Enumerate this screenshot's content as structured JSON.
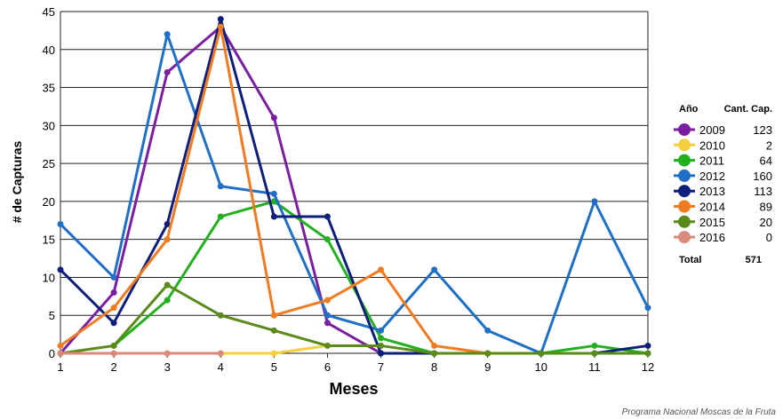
{
  "chart_data": {
    "type": "line",
    "xlabel": "Meses",
    "ylabel": "# de Capturas",
    "x": [
      1,
      2,
      3,
      4,
      5,
      6,
      7,
      8,
      9,
      10,
      11,
      12
    ],
    "xticks": [
      "1",
      "2",
      "3",
      "4",
      "5",
      "6",
      "7",
      "8",
      "9",
      "10",
      "11",
      "12"
    ],
    "ylim": [
      0,
      45
    ],
    "yticks": [
      "0",
      "5",
      "10",
      "15",
      "20",
      "25",
      "30",
      "35",
      "40",
      "45"
    ],
    "grid": "horizontal",
    "legend_position": "right",
    "legend_header": {
      "year": "Año",
      "count": "Cant. Cap."
    },
    "series": [
      {
        "name": "2009",
        "total": "123",
        "color": "#7b1fa2",
        "values": [
          0,
          8,
          37,
          43,
          31,
          4,
          0,
          null,
          null,
          null,
          null,
          null
        ]
      },
      {
        "name": "2010",
        "total": "2",
        "color": "#f4d03f",
        "values": [
          null,
          null,
          null,
          0,
          0,
          1,
          1,
          null,
          null,
          null,
          null,
          null
        ]
      },
      {
        "name": "2011",
        "total": "64",
        "color": "#22b01f",
        "values": [
          null,
          1,
          7,
          18,
          20,
          15,
          2,
          0,
          0,
          0,
          1,
          0
        ]
      },
      {
        "name": "2012",
        "total": "160",
        "color": "#1f6fc6",
        "values": [
          17,
          10,
          42,
          22,
          21,
          5,
          3,
          11,
          3,
          0,
          20,
          6
        ]
      },
      {
        "name": "2013",
        "total": "113",
        "color": "#0d1f7a",
        "values": [
          11,
          4,
          17,
          44,
          18,
          18,
          0,
          0,
          0,
          0,
          0,
          1
        ]
      },
      {
        "name": "2014",
        "total": "89",
        "color": "#f07b20",
        "values": [
          1,
          6,
          15,
          43,
          5,
          7,
          11,
          1,
          0,
          null,
          null,
          null
        ]
      },
      {
        "name": "2015",
        "total": "20",
        "color": "#5a8a1a",
        "values": [
          0,
          1,
          9,
          5,
          3,
          1,
          1,
          0,
          0,
          0,
          0,
          0
        ]
      },
      {
        "name": "2016",
        "total": "0",
        "color": "#d98a7a",
        "values": [
          0,
          0,
          0,
          0,
          null,
          null,
          null,
          null,
          null,
          null,
          null,
          null
        ]
      }
    ],
    "total_label": "Total",
    "total_value": "571",
    "credit": "Programa Nacional Moscas de la Fruta"
  }
}
